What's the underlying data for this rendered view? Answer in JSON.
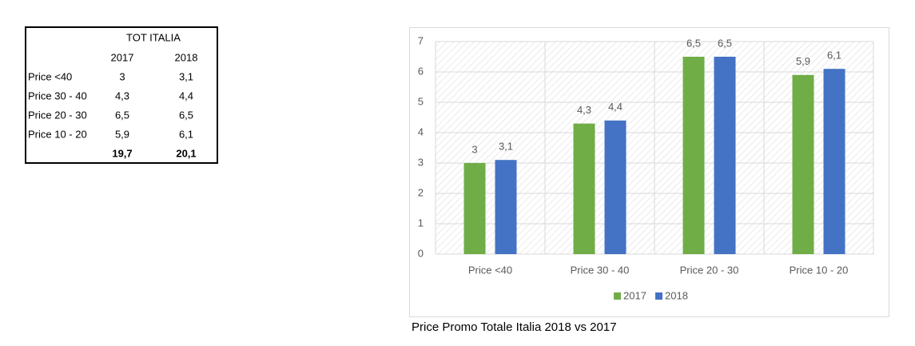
{
  "table": {
    "title": "TOT ITALIA",
    "columns": [
      "2017",
      "2018"
    ],
    "rows": [
      {
        "label": "Price <40",
        "values": [
          "3",
          "3,1"
        ]
      },
      {
        "label": "Price 30 - 40",
        "values": [
          "4,3",
          "4,4"
        ]
      },
      {
        "label": "Price 20 - 30",
        "values": [
          "6,5",
          "6,5"
        ]
      },
      {
        "label": "Price 10 - 20",
        "values": [
          "5,9",
          "6,1"
        ]
      }
    ],
    "totals": [
      "19,7",
      "20,1"
    ]
  },
  "chart_data": {
    "type": "bar",
    "caption": "Price Promo Totale Italia 2018 vs 2017",
    "categories": [
      "Price <40",
      "Price 30 - 40",
      "Price 20 - 30",
      "Price 10 - 20"
    ],
    "series": [
      {
        "name": "2017",
        "color": "#70ad47",
        "values": [
          3,
          4.3,
          6.5,
          5.9
        ],
        "value_labels": [
          "3",
          "4,3",
          "6,5",
          "5,9"
        ]
      },
      {
        "name": "2018",
        "color": "#4472c4",
        "values": [
          3.1,
          4.4,
          6.5,
          6.1
        ],
        "value_labels": [
          "3,1",
          "4,4",
          "6,5",
          "6,1"
        ]
      }
    ],
    "ylim": [
      0,
      7
    ],
    "yticks": [
      0,
      1,
      2,
      3,
      4,
      5,
      6,
      7
    ],
    "grid": true,
    "legend": "bottom"
  }
}
